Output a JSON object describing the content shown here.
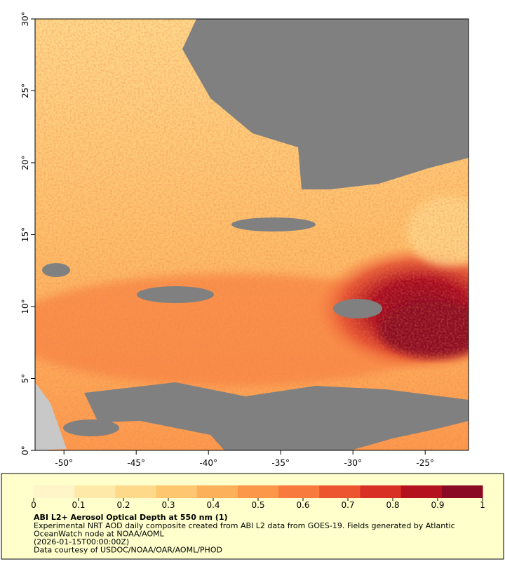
{
  "map": {
    "xlim": [
      -52,
      -22
    ],
    "ylim": [
      0,
      30
    ],
    "xticks": [
      {
        "value": -50,
        "label": "-50°"
      },
      {
        "value": -45,
        "label": "-45°"
      },
      {
        "value": -40,
        "label": "-40°"
      },
      {
        "value": -35,
        "label": "-35°"
      },
      {
        "value": -30,
        "label": "-30°"
      },
      {
        "value": -25,
        "label": "-25°"
      }
    ],
    "yticks": [
      {
        "value": 0,
        "label": "0°"
      },
      {
        "value": 5,
        "label": "5°"
      },
      {
        "value": 10,
        "label": "10°"
      },
      {
        "value": 15,
        "label": "15°"
      },
      {
        "value": 20,
        "label": "20°"
      },
      {
        "value": 25,
        "label": "25°"
      },
      {
        "value": 30,
        "label": "30°"
      }
    ]
  },
  "colorbar": {
    "lim": [
      0,
      1
    ],
    "ticks": [
      0,
      0.1,
      0.2,
      0.3,
      0.4,
      0.5,
      0.6,
      0.7,
      0.8,
      0.9,
      1
    ],
    "colors": [
      "#fff5c8",
      "#ffe9a8",
      "#fed98a",
      "#fec66e",
      "#fdb05a",
      "#fc974a",
      "#f87a3c",
      "#ec5530",
      "#d93026",
      "#b5121f",
      "#8a0a23"
    ]
  },
  "caption": {
    "title": "ABI L2+ Aerosol Optical Depth at 550 nm (1)",
    "lines": [
      "Experimental NRT AOD daily composite created from ABI L2 data from GOES-19. Fields generated by Atlantic",
      "OceanWatch node at NOAA/AOML",
      "(2026-01-15T00:00:00Z)",
      "Data courtesy of USDOC/NOAA/OAR/AOML/PHOD"
    ]
  }
}
